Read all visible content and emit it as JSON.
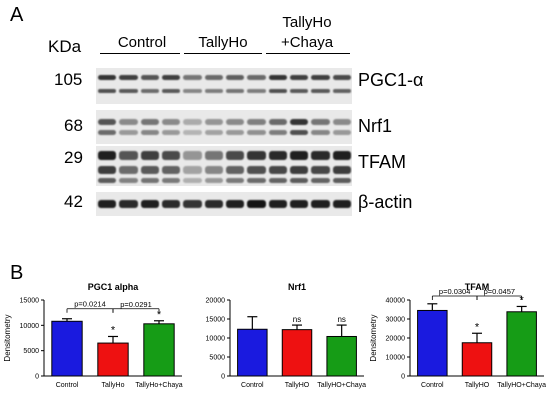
{
  "panel_a": {
    "letter": "A",
    "kda_label": "KDa",
    "groups": [
      {
        "label": "Control"
      },
      {
        "label": "TallyHo"
      },
      {
        "label_line1": "TallyHo",
        "label_line2": "+Chaya"
      }
    ],
    "blots": [
      {
        "mw": "105",
        "protein": "PGC1-α"
      },
      {
        "mw": "68",
        "protein": "Nrf1"
      },
      {
        "mw": "29",
        "protein": "TFAM"
      },
      {
        "mw": "42",
        "protein": "β-actin"
      }
    ]
  },
  "panel_b": {
    "letter": "B",
    "colors": {
      "Control": "#1a1adf",
      "TallyHo": "#ee1111",
      "TallyHo+Chaya": "#169c16"
    }
  },
  "chart_data": [
    {
      "type": "bar",
      "title": "PGC1 alpha",
      "ylabel": "Densitometry",
      "categories": [
        "Control",
        "TallyHo",
        "TallyHo+Chaya"
      ],
      "values": [
        10800,
        6500,
        10300
      ],
      "errors": [
        500,
        1300,
        600
      ],
      "ylim": [
        0,
        15000
      ],
      "yticks": [
        "0",
        "5000",
        "10000",
        "15000"
      ],
      "significance": [
        "",
        "*",
        "*"
      ],
      "comparisons": [
        {
          "from": 0,
          "to": 1,
          "label": "p=0.0214"
        },
        {
          "from": 1,
          "to": 2,
          "label": "p=0.0291"
        }
      ]
    },
    {
      "type": "bar",
      "title": "Nrf1",
      "ylabel": "",
      "categories": [
        "Control",
        "TallyHO",
        "TallyHO+Chaya"
      ],
      "values": [
        12300,
        12200,
        10400
      ],
      "errors": [
        3300,
        1200,
        3000
      ],
      "ylim": [
        0,
        20000
      ],
      "yticks": [
        "0",
        "5000",
        "10000",
        "15000",
        "20000"
      ],
      "significance": [
        "",
        "ns",
        "ns"
      ],
      "comparisons": []
    },
    {
      "type": "bar",
      "title": "TFAM",
      "ylabel": "Densitometry",
      "categories": [
        "Control",
        "TallyHO",
        "TallyHO+Chaya"
      ],
      "values": [
        34500,
        17500,
        33800
      ],
      "errors": [
        3500,
        5000,
        2800
      ],
      "ylim": [
        0,
        40000
      ],
      "yticks": [
        "0",
        "10000",
        "20000",
        "30000",
        "40000"
      ],
      "significance": [
        "",
        "*",
        "*"
      ],
      "comparisons": [
        {
          "from": 0,
          "to": 1,
          "label": "p=0.0304"
        },
        {
          "from": 1,
          "to": 2,
          "label": "p=0.0457"
        }
      ]
    }
  ]
}
